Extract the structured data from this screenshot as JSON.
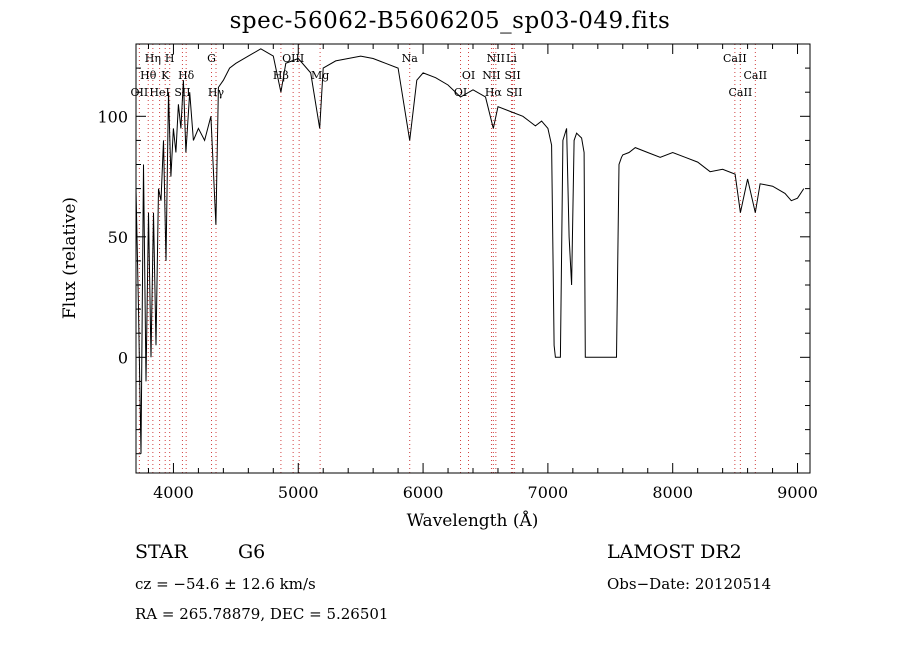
{
  "chart_data": {
    "type": "line",
    "title": "spec-56062-B5606205_sp03-049.fits",
    "xlabel": "Wavelength (Å)",
    "ylabel": "Flux (relative)",
    "xlim": [
      3700,
      9100
    ],
    "ylim": [
      -48,
      130
    ],
    "x_ticks": [
      4000,
      5000,
      6000,
      7000,
      8000,
      9000
    ],
    "y_ticks": [
      0,
      50,
      100
    ],
    "grid": false,
    "series": [
      {
        "x": [
          3700,
          3720,
          3740,
          3760,
          3780,
          3800,
          3820,
          3840,
          3860,
          3880,
          3900,
          3920,
          3940,
          3960,
          3980,
          4000,
          4020,
          4040,
          4060,
          4080,
          4100,
          4130,
          4160,
          4200,
          4250,
          4300,
          4340,
          4360,
          4400,
          4450,
          4500,
          4600,
          4700,
          4800,
          4861,
          4900,
          5000,
          5100,
          5172,
          5200,
          5300,
          5400,
          5500,
          5600,
          5700,
          5800,
          5893,
          5950,
          6000,
          6100,
          6200,
          6300,
          6400,
          6500,
          6563,
          6600,
          6700,
          6800,
          6850,
          6900,
          6950,
          7000,
          7030,
          7050,
          7060,
          7080,
          7100,
          7120,
          7150,
          7170,
          7190,
          7210,
          7230,
          7250,
          7270,
          7290,
          7300,
          7320,
          7350,
          7400,
          7450,
          7500,
          7550,
          7570,
          7590,
          7600,
          7650,
          7700,
          7800,
          7900,
          8000,
          8100,
          8200,
          8300,
          8400,
          8500,
          8542,
          8600,
          8662,
          8700,
          8800,
          8900,
          8950,
          9000,
          9050
        ],
        "y": [
          70,
          20,
          -40,
          80,
          -10,
          60,
          0,
          60,
          5,
          70,
          65,
          90,
          40,
          110,
          75,
          95,
          85,
          105,
          95,
          115,
          85,
          110,
          90,
          95,
          90,
          100,
          55,
          112,
          115,
          120,
          122,
          125,
          128,
          125,
          110,
          122,
          124,
          118,
          95,
          120,
          123,
          124,
          125,
          124,
          122,
          120,
          90,
          115,
          118,
          116,
          113,
          108,
          111,
          108,
          95,
          104,
          102,
          100,
          98,
          96,
          98,
          95,
          88,
          5,
          0,
          0,
          0,
          90,
          95,
          50,
          30,
          90,
          93,
          92,
          91,
          85,
          0,
          0,
          0,
          0,
          0,
          0,
          0,
          80,
          83,
          84,
          85,
          87,
          85,
          83,
          85,
          83,
          81,
          77,
          78,
          76,
          60,
          74,
          60,
          72,
          71,
          68,
          65,
          66,
          70
        ]
      }
    ],
    "line_labels": [
      {
        "text": "Hη",
        "x": 3835,
        "row": 1
      },
      {
        "text": "H",
        "x": 3970,
        "row": 1
      },
      {
        "text": "Hθ",
        "x": 3798,
        "row": 2
      },
      {
        "text": "K",
        "x": 3934,
        "row": 2
      },
      {
        "text": "Hδ",
        "x": 4102,
        "row": 2
      },
      {
        "text": "OII",
        "x": 3727,
        "row": 3
      },
      {
        "text": "HeI",
        "x": 3889,
        "row": 3
      },
      {
        "text": "SII",
        "x": 4072,
        "row": 3
      },
      {
        "text": "G",
        "x": 4305,
        "row": 1
      },
      {
        "text": "Hγ",
        "x": 4341,
        "row": 3
      },
      {
        "text": "OIII",
        "x": 4959,
        "row": 1
      },
      {
        "text": "Hβ",
        "x": 4861,
        "row": 2
      },
      {
        "text": "Mg",
        "x": 5175,
        "row": 2
      },
      {
        "text": "Na",
        "x": 5893,
        "row": 1
      },
      {
        "text": "NII",
        "x": 6583,
        "row": 1
      },
      {
        "text": "Li",
        "x": 6708,
        "row": 1
      },
      {
        "text": "OI",
        "x": 6364,
        "row": 2
      },
      {
        "text": "NII",
        "x": 6548,
        "row": 2
      },
      {
        "text": "SII",
        "x": 6717,
        "row": 2
      },
      {
        "text": "OI",
        "x": 6300,
        "row": 3
      },
      {
        "text": "Hα",
        "x": 6563,
        "row": 3
      },
      {
        "text": "SII",
        "x": 6731,
        "row": 3
      },
      {
        "text": "CaII",
        "x": 8498,
        "row": 1
      },
      {
        "text": "CaII",
        "x": 8662,
        "row": 2
      },
      {
        "text": "CaII",
        "x": 8542,
        "row": 3
      }
    ],
    "line_markers_x": [
      3727,
      3798,
      3835,
      3889,
      3934,
      3970,
      4072,
      4102,
      4305,
      4341,
      4861,
      4959,
      5007,
      5175,
      5893,
      6300,
      6364,
      6548,
      6563,
      6583,
      6708,
      6717,
      6731,
      8498,
      8542,
      8662
    ],
    "line_marker_color": "#d04040",
    "spectrum_color": "#000000"
  },
  "info": {
    "object_class": "STAR",
    "subclass": "G6",
    "survey": "LAMOST DR2",
    "cz": "cz = −54.6 ± 12.6 km/s",
    "obs_date": "Obs−Date: 20120514",
    "coords": "RA = 265.78879, DEC =   5.26501"
  }
}
